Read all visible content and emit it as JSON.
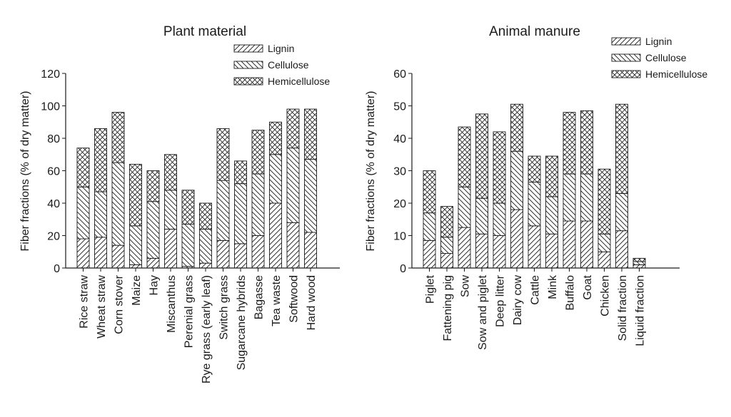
{
  "chart_data": [
    {
      "type": "bar",
      "stacked": true,
      "title": "Plant material",
      "xlabel": "",
      "ylabel": "Fiber fractions (% of dry matter)",
      "ylim": [
        0,
        120
      ],
      "yticks": [
        0,
        20,
        40,
        60,
        80,
        100,
        120
      ],
      "grid": false,
      "legend_position": "top-right",
      "categories": [
        "Rice straw",
        "Wheat straw",
        "Corn stover",
        "Maize",
        "Hay",
        "Miscanthus",
        "Perenial grass",
        "Rye grass (early leaf)",
        "Switch grass",
        "Sugarcane hybrids",
        "Bagasse",
        "Tea waste",
        "Softwood",
        "Hard wood"
      ],
      "series": [
        {
          "name": "Lignin",
          "pattern": "diagonal-up",
          "values": [
            18,
            19,
            14,
            2,
            6,
            24,
            1,
            3,
            17,
            15,
            20,
            40,
            28,
            22
          ]
        },
        {
          "name": "Cellulose",
          "pattern": "diagonal-down",
          "values": [
            32,
            28,
            51,
            24,
            35,
            24,
            26,
            21,
            37,
            37,
            38,
            30,
            46,
            45
          ]
        },
        {
          "name": "Hemicellulose",
          "pattern": "cross-hatch",
          "values": [
            24,
            39,
            31,
            38,
            19,
            22,
            21,
            16,
            32,
            14,
            27,
            20,
            24,
            31
          ]
        }
      ]
    },
    {
      "type": "bar",
      "stacked": true,
      "title": "Animal manure",
      "xlabel": "",
      "ylabel": "Fiber fractions (% of dry matter)",
      "ylim": [
        0,
        60
      ],
      "yticks": [
        0,
        10,
        20,
        30,
        40,
        50,
        60
      ],
      "grid": false,
      "legend_position": "top-right",
      "categories": [
        "Piglet",
        "Fattening pig",
        "Sow",
        "Sow and piglet",
        "Deep litter",
        "Dairy cow",
        "Cattle",
        "Mink",
        "Buffalo",
        "Goat",
        "Chicken",
        "Solid fraction",
        "Liquid fraction"
      ],
      "series": [
        {
          "name": "Lignin",
          "pattern": "diagonal-up",
          "values": [
            8.5,
            4.5,
            12.5,
            10.5,
            10,
            18,
            13,
            10.5,
            14.5,
            14.5,
            5,
            11.5,
            1
          ]
        },
        {
          "name": "Cellulose",
          "pattern": "diagonal-down",
          "values": [
            8.5,
            5,
            12.5,
            11,
            10,
            18,
            13.5,
            11.5,
            14.5,
            14.5,
            5.5,
            11.5,
            1
          ]
        },
        {
          "name": "Hemicellulose",
          "pattern": "cross-hatch",
          "values": [
            13,
            9.5,
            18.5,
            26,
            22,
            14.5,
            8,
            12.5,
            19,
            19.5,
            20,
            27.5,
            1
          ]
        }
      ]
    }
  ]
}
